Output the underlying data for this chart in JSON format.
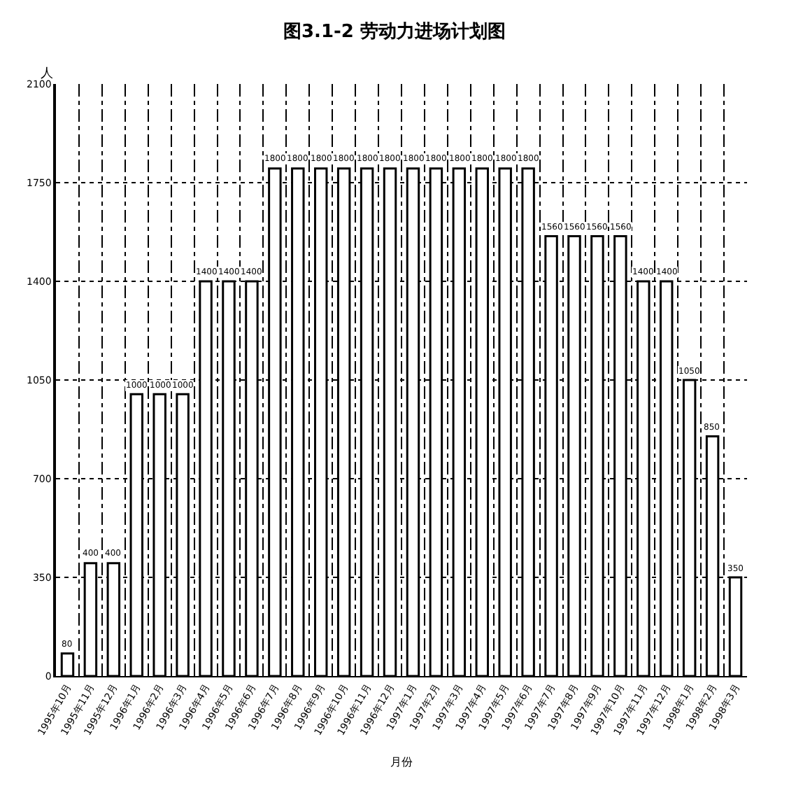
{
  "chart_data": {
    "type": "bar",
    "title": "图3.1-2 劳动力进场计划图",
    "xlabel": "月份",
    "ylabel": "人",
    "categories": [
      "1995年10月",
      "1995年11月",
      "1995年12月",
      "1996年1月",
      "1996年2月",
      "1996年3月",
      "1996年4月",
      "1996年5月",
      "1996年6月",
      "1996年7月",
      "1996年8月",
      "1996年9月",
      "1996年10月",
      "1996年11月",
      "1996年12月",
      "1997年1月",
      "1997年2月",
      "1997年3月",
      "1997年4月",
      "1997年5月",
      "1997年6月",
      "1997年7月",
      "1997年8月",
      "1997年9月",
      "1997年10月",
      "1997年11月",
      "1997年12月",
      "1998年1月",
      "1998年2月",
      "1998年3月"
    ],
    "values": [
      80,
      400,
      400,
      1000,
      1000,
      1000,
      1400,
      1400,
      1400,
      1800,
      1800,
      1800,
      1800,
      1800,
      1800,
      1800,
      1800,
      1800,
      1800,
      1800,
      1800,
      1560,
      1560,
      1560,
      1560,
      1400,
      1400,
      1050,
      850,
      350
    ],
    "color": "#ffffff",
    "ylim": [
      0,
      2100
    ],
    "yticks": [
      0,
      350,
      700,
      1050,
      1400,
      1750,
      2100
    ],
    "grid": true,
    "data_labels": true
  }
}
